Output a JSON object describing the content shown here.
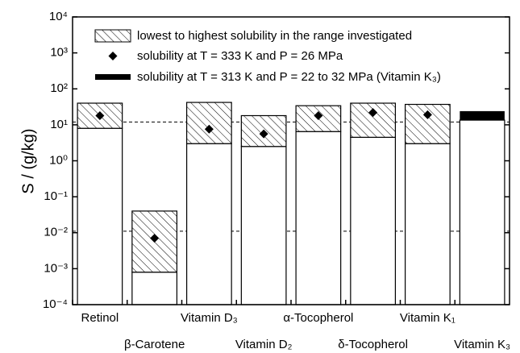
{
  "chart_data": {
    "type": "range_bar",
    "ylabel": "S / (g/kg)",
    "log_y": true,
    "ylim": [
      0.0001,
      10000
    ],
    "yticks": [
      {
        "value": 0.0001,
        "label": "10⁻⁴"
      },
      {
        "value": 0.001,
        "label": "10⁻³"
      },
      {
        "value": 0.01,
        "label": "10⁻²"
      },
      {
        "value": 0.1,
        "label": "10⁻¹"
      },
      {
        "value": 1,
        "label": "10⁰"
      },
      {
        "value": 10,
        "label": "10¹"
      },
      {
        "value": 100,
        "label": "10²"
      },
      {
        "value": 1000,
        "label": "10³"
      },
      {
        "value": 10000,
        "label": "10⁴"
      }
    ],
    "categories": [
      "Retinol",
      "β-Carotene",
      "Vitamin D₃",
      "Vitamin D₂",
      "α-Tocopherol",
      "δ-Tocopherol",
      "Vitamin K₁",
      "Vitamin K₃"
    ],
    "series": [
      {
        "name": "lowest to highest solubility in the range investigated",
        "color": "#000000",
        "low": [
          8,
          0.0008,
          3,
          2.5,
          6.5,
          4.5,
          3,
          null
        ],
        "high": [
          40,
          0.04,
          42,
          18,
          34,
          40,
          37,
          null
        ]
      },
      {
        "name": "solubility at T = 333 K and P = 26 MPa",
        "color": "#000000",
        "values": [
          18,
          0.007,
          7.6,
          5.6,
          18,
          22,
          19,
          null
        ]
      },
      {
        "name": "solubility at T = 313 K and P = 22 to 32 MPa (Vitamin K₃)",
        "color": "#000000",
        "low": [
          null,
          null,
          null,
          null,
          null,
          null,
          null,
          13.5
        ],
        "high": [
          null,
          null,
          null,
          null,
          null,
          null,
          null,
          24
        ]
      }
    ],
    "reference_lines": [
      12,
      0.011
    ]
  }
}
